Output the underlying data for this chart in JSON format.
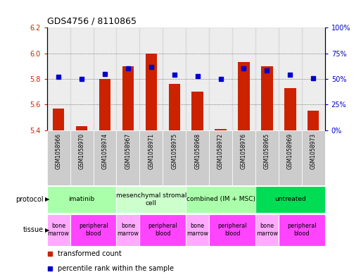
{
  "title": "GDS4756 / 8110865",
  "samples": [
    "GSM1058966",
    "GSM1058970",
    "GSM1058974",
    "GSM1058967",
    "GSM1058971",
    "GSM1058975",
    "GSM1058968",
    "GSM1058972",
    "GSM1058976",
    "GSM1058965",
    "GSM1058969",
    "GSM1058973"
  ],
  "transformed_counts": [
    5.57,
    5.43,
    5.8,
    5.9,
    6.0,
    5.76,
    5.7,
    5.41,
    5.93,
    5.9,
    5.73,
    5.55
  ],
  "percentile_ranks": [
    52,
    50,
    55,
    60,
    62,
    54,
    53,
    50,
    60,
    58,
    54,
    51
  ],
  "ylim_left": [
    5.4,
    6.2
  ],
  "ylim_right": [
    0,
    100
  ],
  "yticks_left": [
    5.4,
    5.6,
    5.8,
    6.0,
    6.2
  ],
  "yticks_right": [
    0,
    25,
    50,
    75,
    100
  ],
  "ytick_labels_right": [
    "0%",
    "25%",
    "50%",
    "75%",
    "100%"
  ],
  "bar_color": "#cc2200",
  "dot_color": "#0000cc",
  "bar_bottom": 5.4,
  "protocols": [
    {
      "label": "imatinib",
      "start": 0,
      "end": 3,
      "color": "#aaffaa"
    },
    {
      "label": "mesenchymal stromal\ncell",
      "start": 3,
      "end": 6,
      "color": "#ccffcc"
    },
    {
      "label": "combined (IM + MSC)",
      "start": 6,
      "end": 9,
      "color": "#aaffaa"
    },
    {
      "label": "untreated",
      "start": 9,
      "end": 12,
      "color": "#00dd55"
    }
  ],
  "tissues": [
    {
      "label": "bone\nmarrow",
      "start": 0,
      "end": 1,
      "color": "#ffaaff"
    },
    {
      "label": "peripheral\nblood",
      "start": 1,
      "end": 3,
      "color": "#ff44ff"
    },
    {
      "label": "bone\nmarrow",
      "start": 3,
      "end": 4,
      "color": "#ffaaff"
    },
    {
      "label": "peripheral\nblood",
      "start": 4,
      "end": 6,
      "color": "#ff44ff"
    },
    {
      "label": "bone\nmarrow",
      "start": 6,
      "end": 7,
      "color": "#ffaaff"
    },
    {
      "label": "peripheral\nblood",
      "start": 7,
      "end": 9,
      "color": "#ff44ff"
    },
    {
      "label": "bone\nmarrow",
      "start": 9,
      "end": 10,
      "color": "#ffaaff"
    },
    {
      "label": "peripheral\nblood",
      "start": 10,
      "end": 12,
      "color": "#ff44ff"
    }
  ],
  "grid_color": "#555555",
  "sample_bg_color": "#cccccc",
  "left_axis_color": "#cc2200",
  "right_axis_color": "#0000cc",
  "protocol_label": "protocol",
  "tissue_label": "tissue",
  "legend_red": "transformed count",
  "legend_blue": "percentile rank within the sample"
}
